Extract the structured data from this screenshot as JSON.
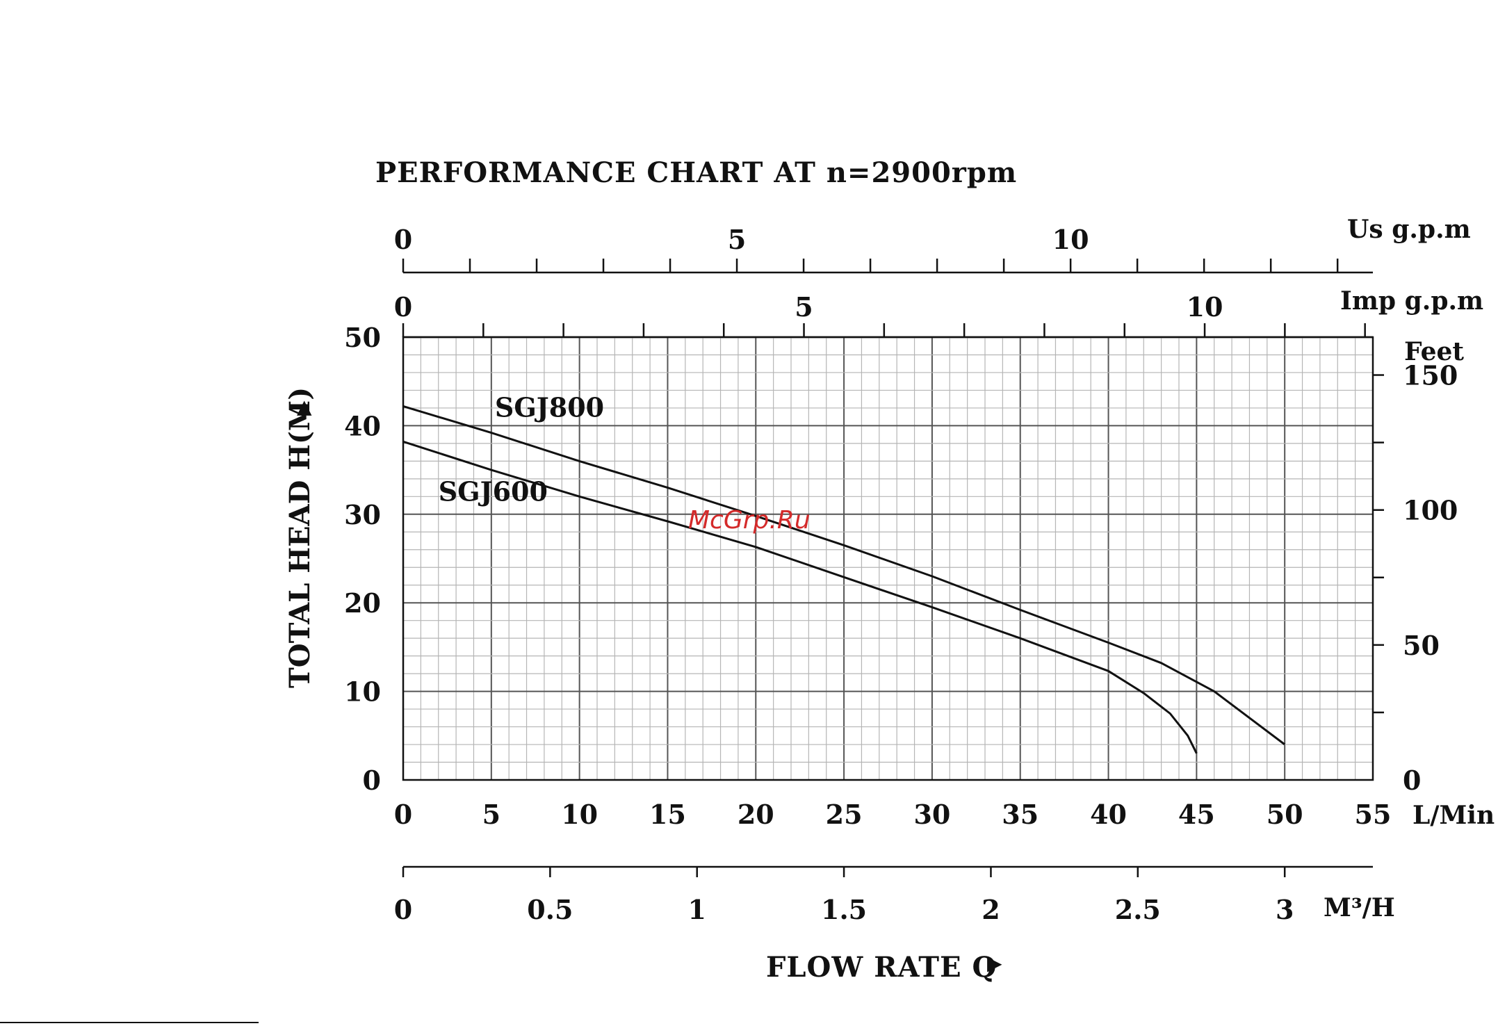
{
  "chart_data": {
    "type": "line",
    "title": "PERFORMANCE CHART AT n=2900rpm",
    "ylabel": "TOTAL HEAD H(M)",
    "ylabel_arrow": "▶",
    "xlabel": "FLOW RATE Q",
    "xlabel_arrow": "▶",
    "x_unit": "L/Min",
    "y_unit_right": "Feet",
    "xlim": [
      0,
      55
    ],
    "ylim": [
      0,
      50
    ],
    "x_ticks": [
      "0",
      "5",
      "10",
      "15",
      "20",
      "25",
      "30",
      "35",
      "40",
      "45",
      "50",
      "55"
    ],
    "y_ticks": [
      "0",
      "10",
      "20",
      "30",
      "40",
      "50"
    ],
    "feet_ticks": [
      {
        "value": 0,
        "label": "0"
      },
      {
        "value": 50,
        "label": "50"
      },
      {
        "value": 100,
        "label": "100"
      },
      {
        "value": 150,
        "label": "150"
      }
    ],
    "m3h_axis": {
      "unit": "M³/H",
      "ticks": [
        {
          "value": 0,
          "label": "0"
        },
        {
          "value": 0.5,
          "label": "0.5"
        },
        {
          "value": 1,
          "label": "1"
        },
        {
          "value": 1.5,
          "label": "1.5"
        },
        {
          "value": 2,
          "label": "2"
        },
        {
          "value": 2.5,
          "label": "2.5"
        },
        {
          "value": 3,
          "label": "3"
        }
      ]
    },
    "usgpm_axis": {
      "unit": "Us g.p.m",
      "ticks": [
        {
          "value": 0,
          "label": "0"
        },
        {
          "value": 5,
          "label": "5"
        },
        {
          "value": 10,
          "label": "10"
        }
      ]
    },
    "impgpm_axis": {
      "unit": "Imp g.p.m",
      "ticks": [
        {
          "value": 0,
          "label": "0"
        },
        {
          "value": 5,
          "label": "5"
        },
        {
          "value": 10,
          "label": "10"
        }
      ]
    },
    "grid": true,
    "series": [
      {
        "name": "SGJ800",
        "x": [
          0,
          5,
          10,
          15,
          20,
          25,
          30,
          35,
          40,
          43,
          46,
          48,
          50
        ],
        "y": [
          42.2,
          39.2,
          36.0,
          33.0,
          29.8,
          26.5,
          23.0,
          19.2,
          15.5,
          13.2,
          10.0,
          7.0,
          4.0
        ]
      },
      {
        "name": "SGJ600",
        "x": [
          0,
          5,
          10,
          15,
          20,
          25,
          30,
          35,
          40,
          42,
          43.5,
          44.5,
          45
        ],
        "y": [
          38.2,
          35.0,
          32.0,
          29.2,
          26.3,
          22.9,
          19.5,
          16.0,
          12.3,
          9.8,
          7.5,
          5.0,
          3.0
        ]
      }
    ]
  },
  "watermark": "McGrp.Ru"
}
